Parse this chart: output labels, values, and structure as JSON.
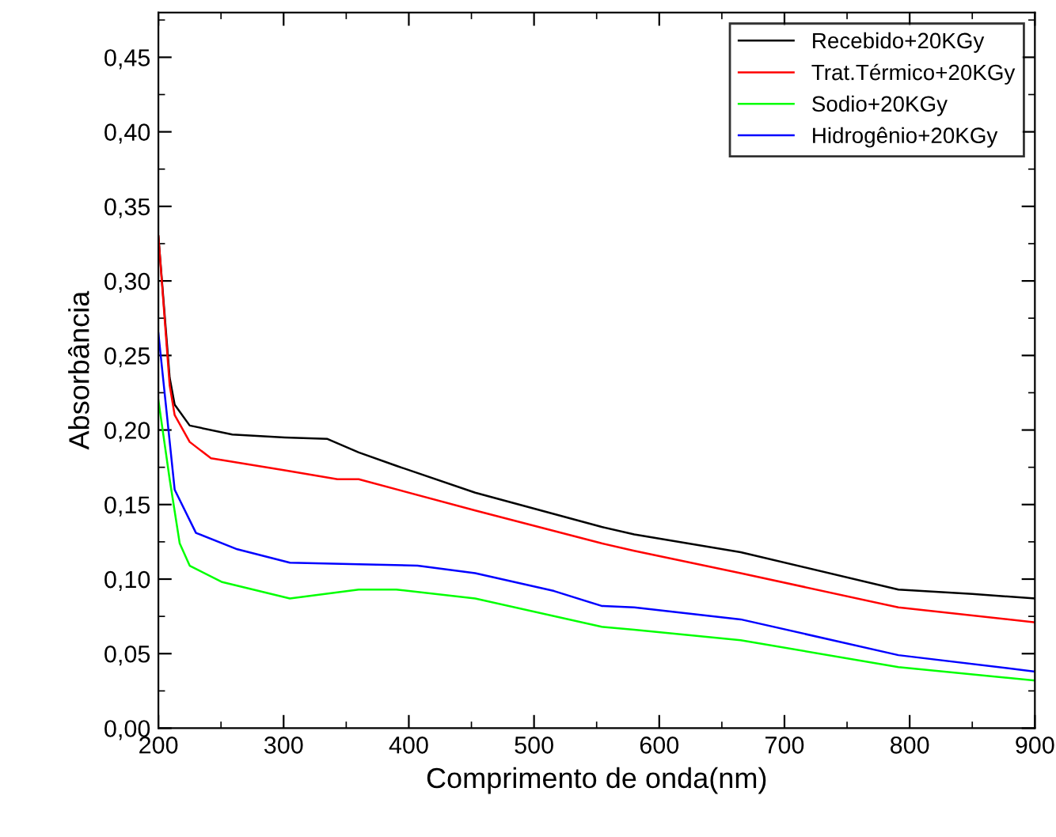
{
  "chart_data": {
    "type": "line",
    "xlabel": "Comprimento de onda(nm)",
    "ylabel": "Absorbância",
    "xlim": [
      200,
      900
    ],
    "ylim": [
      0,
      0.48
    ],
    "xticks": [
      {
        "value": 200,
        "label": "200"
      },
      {
        "value": 300,
        "label": "300"
      },
      {
        "value": 400,
        "label": "400"
      },
      {
        "value": 500,
        "label": "500"
      },
      {
        "value": 600,
        "label": "600"
      },
      {
        "value": 700,
        "label": "700"
      },
      {
        "value": 800,
        "label": "800"
      },
      {
        "value": 900,
        "label": "900"
      }
    ],
    "yticks": [
      {
        "value": 0,
        "label": "0,00"
      },
      {
        "value": 0.05,
        "label": "0,05"
      },
      {
        "value": 0.1,
        "label": "0,10"
      },
      {
        "value": 0.15,
        "label": "0,15"
      },
      {
        "value": 0.2,
        "label": "0,20"
      },
      {
        "value": 0.25,
        "label": "0,25"
      },
      {
        "value": 0.3,
        "label": "0,30"
      },
      {
        "value": 0.35,
        "label": "0,35"
      },
      {
        "value": 0.4,
        "label": "0,40"
      },
      {
        "value": 0.45,
        "label": "0,45"
      }
    ],
    "legend": "top right",
    "grid": false,
    "marker": "none",
    "line_style": "solid",
    "series": [
      {
        "name": "Recebido+20KGy",
        "color": "#000000",
        "x": [
          200,
          209,
          213,
          225,
          259,
          301,
          335,
          360,
          390,
          453,
          554,
          580,
          665,
          791,
          850,
          900
        ],
        "values": [
          0.33,
          0.235,
          0.217,
          0.203,
          0.197,
          0.195,
          0.194,
          0.185,
          0.176,
          0.158,
          0.135,
          0.13,
          0.118,
          0.093,
          0.09,
          0.087
        ]
      },
      {
        "name": "Trat.Térmico+20KGy",
        "color": "#ff0000",
        "x": [
          200,
          209,
          213,
          225,
          242,
          301,
          343,
          360,
          453,
          554,
          580,
          665,
          791,
          900
        ],
        "values": [
          0.33,
          0.23,
          0.21,
          0.192,
          0.181,
          0.173,
          0.167,
          0.167,
          0.146,
          0.124,
          0.119,
          0.104,
          0.081,
          0.071
        ]
      },
      {
        "name": "Sodio+20KGy",
        "color": "#00ff00",
        "x": [
          200,
          209,
          217,
          225,
          251,
          305,
          360,
          390,
          453,
          554,
          580,
          665,
          791,
          900
        ],
        "values": [
          0.22,
          0.167,
          0.124,
          0.109,
          0.098,
          0.087,
          0.093,
          0.093,
          0.087,
          0.068,
          0.066,
          0.059,
          0.041,
          0.032
        ]
      },
      {
        "name": "Hidrogênio+20KGy",
        "color": "#0000ff",
        "x": [
          200,
          213,
          230,
          263,
          305,
          360,
          407,
          453,
          516,
          554,
          580,
          665,
          791,
          900
        ],
        "values": [
          0.265,
          0.16,
          0.131,
          0.12,
          0.111,
          0.11,
          0.109,
          0.104,
          0.092,
          0.082,
          0.081,
          0.073,
          0.049,
          0.038
        ]
      }
    ]
  }
}
